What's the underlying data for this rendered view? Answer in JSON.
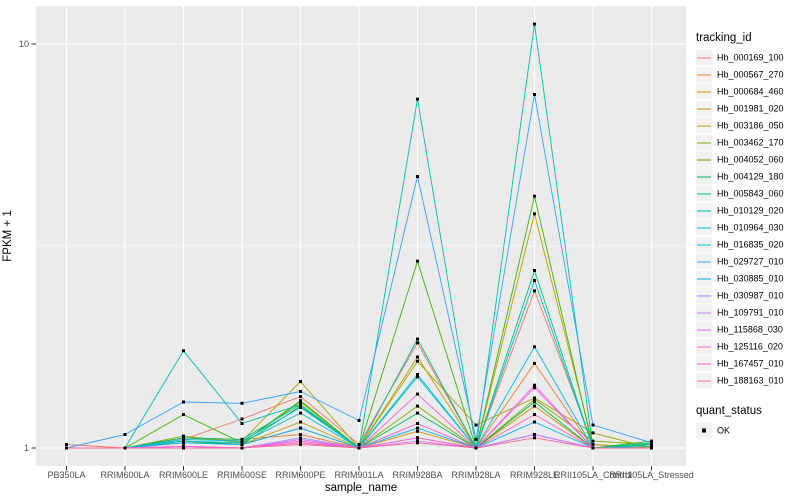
{
  "chart_data": {
    "type": "line",
    "title": "",
    "xlabel": "sample_name",
    "ylabel": "FPKM + 1",
    "y_scale": "log10",
    "y_tick_values": [
      1,
      10
    ],
    "y_tick_labels": [
      "1",
      "10"
    ],
    "y_minor_break": 3.1623,
    "ylim_log": [
      0.955,
      1.093
    ],
    "grid": "on",
    "legend_position": "right",
    "panel_bg": "#EBEBEB",
    "grid_color": "#FFFFFF",
    "key_bg": "#F2F2F2",
    "point_color": "#000000",
    "axis_text_color": "#4D4D4D",
    "x_categories": [
      "PB350LA",
      "RRIM600LA",
      "RRIM600LE",
      "RRIM600SE",
      "RRIM600PE",
      "RRIM901LA",
      "RRIM928BA",
      "RRIM928LA",
      "RRIM928LE",
      "RRII105LA_Control",
      "RRII105LA_Stressed"
    ],
    "series": [
      {
        "name": "Hb_000169_100",
        "color": "#F8766D",
        "values": [
          1.02,
          1.0,
          1.05,
          1.18,
          1.34,
          1.02,
          1.82,
          1.0,
          2.45,
          1.02,
          1.0
        ]
      },
      {
        "name": "Hb_000567_270",
        "color": "#EA8331",
        "values": [
          1.0,
          1.0,
          1.06,
          1.05,
          1.08,
          1.0,
          1.15,
          1.0,
          1.62,
          1.0,
          1.0
        ]
      },
      {
        "name": "Hb_000684_460",
        "color": "#D89000",
        "values": [
          1.0,
          1.0,
          1.03,
          1.02,
          1.12,
          1.0,
          1.1,
          1.0,
          1.27,
          1.0,
          1.0
        ]
      },
      {
        "name": "Hb_001981_020",
        "color": "#C09B00",
        "values": [
          1.0,
          1.0,
          1.04,
          1.02,
          1.16,
          1.0,
          1.68,
          1.0,
          3.8,
          1.02,
          1.0
        ]
      },
      {
        "name": "Hb_003186_050",
        "color": "#A3A500",
        "values": [
          1.0,
          1.0,
          1.06,
          1.04,
          1.46,
          1.0,
          1.64,
          1.14,
          1.33,
          1.09,
          1.0
        ]
      },
      {
        "name": "Hb_003462_170",
        "color": "#7CAE00",
        "values": [
          1.0,
          1.0,
          1.07,
          1.03,
          1.3,
          1.0,
          1.27,
          1.0,
          1.32,
          1.04,
          1.02
        ]
      },
      {
        "name": "Hb_004052_060",
        "color": "#39B600",
        "values": [
          1.0,
          1.0,
          1.21,
          1.03,
          1.31,
          1.0,
          2.9,
          1.0,
          4.2,
          1.0,
          1.04
        ]
      },
      {
        "name": "Hb_004129_180",
        "color": "#00BB4E",
        "values": [
          1.0,
          1.0,
          1.04,
          1.02,
          1.27,
          1.0,
          1.22,
          1.0,
          1.3,
          1.0,
          1.02
        ]
      },
      {
        "name": "Hb_005843_060",
        "color": "#00BF7D",
        "values": [
          1.0,
          1.0,
          1.06,
          1.05,
          1.28,
          1.0,
          1.86,
          1.0,
          2.75,
          1.0,
          1.02
        ]
      },
      {
        "name": "Hb_010129_020",
        "color": "#00C1A3",
        "values": [
          1.0,
          1.0,
          1.74,
          1.15,
          1.28,
          1.0,
          7.3,
          1.0,
          11.2,
          1.0,
          1.03
        ]
      },
      {
        "name": "Hb_010964_030",
        "color": "#00BFC4",
        "values": [
          1.0,
          1.0,
          1.04,
          1.03,
          1.22,
          1.0,
          1.5,
          1.0,
          2.6,
          1.0,
          1.01
        ]
      },
      {
        "name": "Hb_016835_020",
        "color": "#00BAE0",
        "values": [
          1.0,
          1.0,
          1.05,
          1.04,
          1.26,
          1.0,
          1.52,
          1.0,
          1.78,
          1.0,
          1.0
        ]
      },
      {
        "name": "Hb_029727_010",
        "color": "#35A2FF",
        "values": [
          1.0,
          1.08,
          1.3,
          1.29,
          1.38,
          1.17,
          4.7,
          1.05,
          7.5,
          1.14,
          1.03
        ]
      },
      {
        "name": "Hb_030885_010",
        "color": "#00B0F6",
        "values": [
          1.0,
          1.0,
          1.03,
          1.02,
          1.12,
          1.0,
          1.12,
          1.0,
          1.16,
          1.0,
          1.0
        ]
      },
      {
        "name": "Hb_030987_010",
        "color": "#9590FF",
        "values": [
          1.0,
          1.0,
          1.01,
          1.0,
          1.06,
          1.0,
          1.06,
          1.0,
          1.08,
          1.0,
          1.0
        ]
      },
      {
        "name": "Hb_109791_010",
        "color": "#C77CFF",
        "values": [
          1.0,
          1.0,
          1.0,
          1.0,
          1.03,
          1.0,
          1.04,
          1.0,
          1.08,
          1.0,
          1.0
        ]
      },
      {
        "name": "Hb_115868_030",
        "color": "#E76BF3",
        "values": [
          1.0,
          1.0,
          1.01,
          1.0,
          1.05,
          1.0,
          1.15,
          1.0,
          1.43,
          1.0,
          1.0
        ]
      },
      {
        "name": "Hb_125116_020",
        "color": "#FA62DB",
        "values": [
          1.0,
          1.0,
          1.01,
          1.0,
          1.04,
          1.0,
          1.36,
          1.0,
          1.41,
          1.0,
          1.0
        ]
      },
      {
        "name": "Hb_167457_010",
        "color": "#FF62BC",
        "values": [
          1.0,
          1.0,
          1.0,
          1.0,
          1.03,
          1.0,
          1.06,
          1.0,
          1.21,
          1.0,
          1.0
        ]
      },
      {
        "name": "Hb_188163_010",
        "color": "#FF6A98",
        "values": [
          1.0,
          1.0,
          1.0,
          1.0,
          1.02,
          1.0,
          1.03,
          1.0,
          1.06,
          1.0,
          1.0
        ]
      }
    ],
    "legend": {
      "color_title": "tracking_id",
      "shape_title": "quant_status",
      "shape_items": [
        {
          "label": "OK",
          "shape": "black-square"
        }
      ]
    }
  }
}
